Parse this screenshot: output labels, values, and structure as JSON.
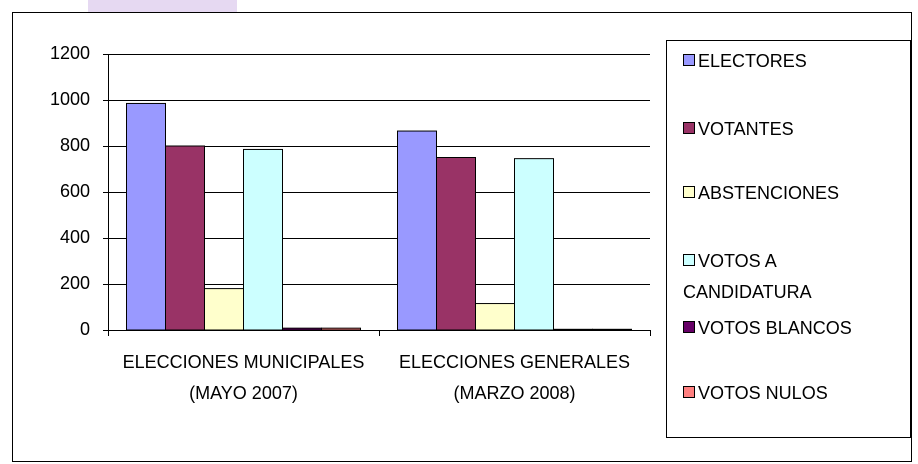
{
  "chart_data": {
    "type": "bar",
    "categories": [
      "ELECCIONES MUNICIPALES (MAYO 2007)",
      "ELECCIONES GENERALES (MARZO 2008)"
    ],
    "series": [
      {
        "name": "ELECTORES",
        "color": "#9999ff",
        "values": [
          985,
          865
        ]
      },
      {
        "name": "VOTANTES",
        "color": "#993366",
        "values": [
          800,
          750
        ]
      },
      {
        "name": "ABSTENCIONES",
        "color": "#ffffcc",
        "values": [
          180,
          115
        ]
      },
      {
        "name": "VOTOS A CANDIDATURA",
        "color": "#ccffff",
        "values": [
          785,
          745
        ]
      },
      {
        "name": "VOTOS BLANCOS",
        "color": "#660066",
        "values": [
          8,
          3
        ]
      },
      {
        "name": "VOTOS NULOS",
        "color": "#ff8080",
        "values": [
          8,
          3
        ]
      }
    ],
    "ylim": [
      0,
      1200
    ],
    "yticks": [
      0,
      200,
      400,
      600,
      800,
      1000,
      1200
    ],
    "grid": true,
    "legend": "right"
  }
}
